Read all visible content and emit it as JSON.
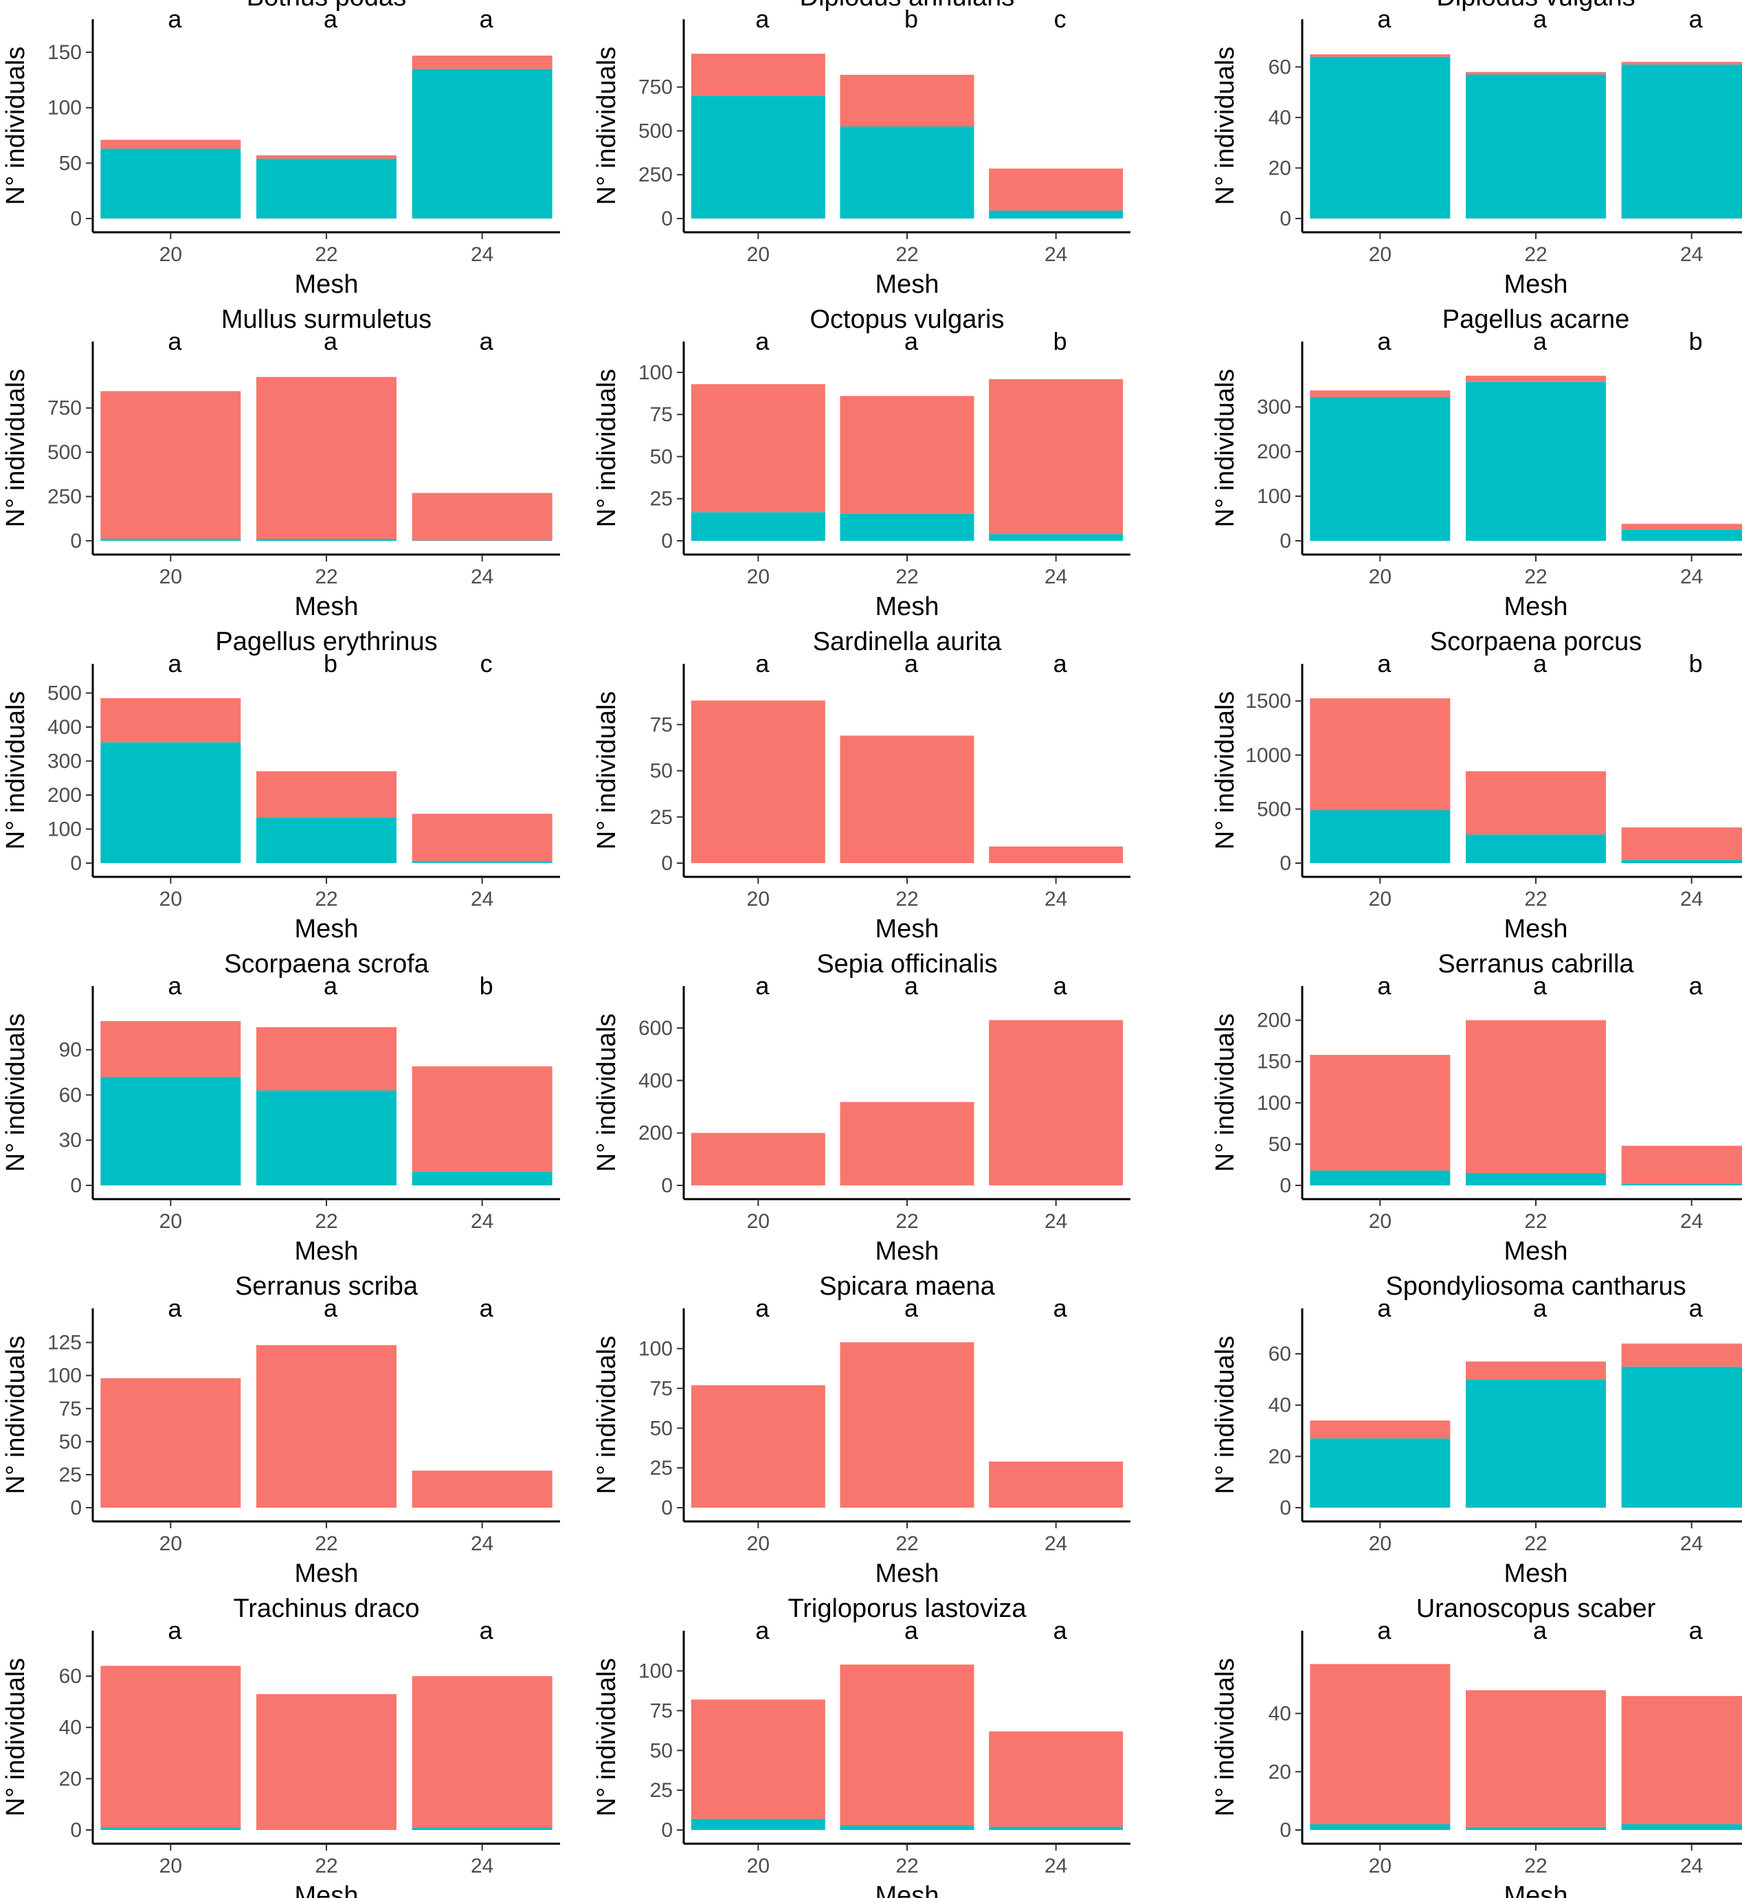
{
  "colors": {
    "teal": "#00BFC4",
    "salmon": "#F8766D"
  },
  "chart_data": [
    {
      "type": "bar",
      "stacked": true,
      "title": "Bothus podas",
      "xlabel": "Mesh",
      "ylabel": "N° individuals",
      "categories": [
        "20",
        "22",
        "24"
      ],
      "series": [
        {
          "name": "teal",
          "values": [
            63,
            54,
            135
          ]
        },
        {
          "name": "salmon",
          "values": [
            8,
            3,
            12
          ]
        }
      ],
      "ylim": [
        0,
        155
      ],
      "yticks": [
        0,
        50,
        100,
        150
      ],
      "letters": [
        "a",
        "a",
        "a"
      ]
    },
    {
      "type": "bar",
      "stacked": true,
      "title": "Diplodus annularis",
      "xlabel": "Mesh",
      "ylabel": "N° individuals",
      "categories": [
        "20",
        "22",
        "24"
      ],
      "series": [
        {
          "name": "teal",
          "values": [
            700,
            525,
            45
          ]
        },
        {
          "name": "salmon",
          "values": [
            240,
            295,
            240
          ]
        }
      ],
      "ylim": [
        0,
        980
      ],
      "yticks": [
        0,
        250,
        500,
        750
      ],
      "letters": [
        "a",
        "b",
        "c"
      ]
    },
    {
      "type": "bar",
      "stacked": true,
      "title": "Diplodus vulgaris",
      "xlabel": "Mesh",
      "ylabel": "N° individuals",
      "categories": [
        "20",
        "22",
        "24"
      ],
      "series": [
        {
          "name": "teal",
          "values": [
            64,
            57,
            61
          ]
        },
        {
          "name": "salmon",
          "values": [
            1,
            1,
            1
          ]
        }
      ],
      "ylim": [
        0,
        68
      ],
      "yticks": [
        0,
        20,
        40,
        60
      ],
      "letters": [
        "a",
        "a",
        "a"
      ]
    },
    {
      "type": "bar",
      "stacked": true,
      "title": "Mullus surmuletus",
      "xlabel": "Mesh",
      "ylabel": "N° individuals",
      "categories": [
        "20",
        "22",
        "24"
      ],
      "series": [
        {
          "name": "teal",
          "values": [
            12,
            10,
            2
          ]
        },
        {
          "name": "salmon",
          "values": [
            833,
            915,
            268
          ]
        }
      ],
      "ylim": [
        0,
        970
      ],
      "yticks": [
        0,
        250,
        500,
        750
      ],
      "letters": [
        "a",
        "a",
        "a"
      ]
    },
    {
      "type": "bar",
      "stacked": true,
      "title": "Octopus vulgaris",
      "xlabel": "Mesh",
      "ylabel": "N° individuals",
      "categories": [
        "20",
        "22",
        "24"
      ],
      "series": [
        {
          "name": "teal",
          "values": [
            17,
            16,
            4
          ]
        },
        {
          "name": "salmon",
          "values": [
            76,
            70,
            92
          ]
        }
      ],
      "ylim": [
        0,
        102
      ],
      "yticks": [
        0,
        25,
        50,
        75,
        100
      ],
      "letters": [
        "a",
        "a",
        "b"
      ]
    },
    {
      "type": "bar",
      "stacked": true,
      "title": "Pagellus acarne",
      "xlabel": "Mesh",
      "ylabel": "N° individuals",
      "categories": [
        "20",
        "22",
        "24"
      ],
      "series": [
        {
          "name": "teal",
          "values": [
            322,
            356,
            25
          ]
        },
        {
          "name": "salmon",
          "values": [
            15,
            14,
            13
          ]
        }
      ],
      "ylim": [
        0,
        385
      ],
      "yticks": [
        0,
        100,
        200,
        300
      ],
      "letters": [
        "a",
        "a",
        "b"
      ]
    },
    {
      "type": "bar",
      "stacked": true,
      "title": "Pagellus erythrinus",
      "xlabel": "Mesh",
      "ylabel": "N° individuals",
      "categories": [
        "20",
        "22",
        "24"
      ],
      "series": [
        {
          "name": "teal",
          "values": [
            355,
            135,
            5
          ]
        },
        {
          "name": "salmon",
          "values": [
            130,
            135,
            140
          ]
        }
      ],
      "ylim": [
        0,
        505
      ],
      "yticks": [
        0,
        100,
        200,
        300,
        400,
        500
      ],
      "letters": [
        "a",
        "b",
        "c"
      ]
    },
    {
      "type": "bar",
      "stacked": true,
      "title": "Sardinella aurita",
      "xlabel": "Mesh",
      "ylabel": "N° individuals",
      "categories": [
        "20",
        "22",
        "24"
      ],
      "series": [
        {
          "name": "teal",
          "values": [
            0,
            0,
            0
          ]
        },
        {
          "name": "salmon",
          "values": [
            88,
            69,
            9
          ]
        }
      ],
      "ylim": [
        0,
        93
      ],
      "yticks": [
        0,
        25,
        50,
        75
      ],
      "letters": [
        "a",
        "a",
        "a"
      ]
    },
    {
      "type": "bar",
      "stacked": true,
      "title": "Scorpaena porcus",
      "xlabel": "Mesh",
      "ylabel": "N° individuals",
      "categories": [
        "20",
        "22",
        "24"
      ],
      "series": [
        {
          "name": "teal",
          "values": [
            490,
            265,
            30
          ]
        },
        {
          "name": "salmon",
          "values": [
            1035,
            585,
            300
          ]
        }
      ],
      "ylim": [
        0,
        1590
      ],
      "yticks": [
        0,
        500,
        1000,
        1500
      ],
      "letters": [
        "a",
        "a",
        "b"
      ]
    },
    {
      "type": "bar",
      "stacked": true,
      "title": "Scorpaena scrofa",
      "xlabel": "Mesh",
      "ylabel": "N° individuals",
      "categories": [
        "20",
        "22",
        "24"
      ],
      "series": [
        {
          "name": "teal",
          "values": [
            72,
            63,
            9
          ]
        },
        {
          "name": "salmon",
          "values": [
            37,
            42,
            70
          ]
        }
      ],
      "ylim": [
        0,
        114
      ],
      "yticks": [
        0,
        30,
        60,
        90
      ],
      "letters": [
        "a",
        "a",
        "b"
      ]
    },
    {
      "type": "bar",
      "stacked": true,
      "title": "Sepia officinalis",
      "xlabel": "Mesh",
      "ylabel": "N° individuals",
      "categories": [
        "20",
        "22",
        "24"
      ],
      "series": [
        {
          "name": "teal",
          "values": [
            0,
            0,
            0
          ]
        },
        {
          "name": "salmon",
          "values": [
            200,
            318,
            630
          ]
        }
      ],
      "ylim": [
        0,
        655
      ],
      "yticks": [
        0,
        200,
        400,
        600
      ],
      "letters": [
        "a",
        "a",
        "a"
      ]
    },
    {
      "type": "bar",
      "stacked": true,
      "title": "Serranus cabrilla",
      "xlabel": "Mesh",
      "ylabel": "N° individuals",
      "categories": [
        "20",
        "22",
        "24"
      ],
      "series": [
        {
          "name": "teal",
          "values": [
            18,
            15,
            2
          ]
        },
        {
          "name": "salmon",
          "values": [
            140,
            185,
            46
          ]
        }
      ],
      "ylim": [
        0,
        208
      ],
      "yticks": [
        0,
        50,
        100,
        150,
        200
      ],
      "letters": [
        "a",
        "a",
        "a"
      ]
    },
    {
      "type": "bar",
      "stacked": true,
      "title": "Serranus scriba",
      "xlabel": "Mesh",
      "ylabel": "N° individuals",
      "categories": [
        "20",
        "22",
        "24"
      ],
      "series": [
        {
          "name": "teal",
          "values": [
            0,
            0,
            0
          ]
        },
        {
          "name": "salmon",
          "values": [
            98,
            123,
            28
          ]
        }
      ],
      "ylim": [
        0,
        130
      ],
      "yticks": [
        0,
        25,
        50,
        75,
        100,
        125
      ],
      "letters": [
        "a",
        "a",
        "a"
      ]
    },
    {
      "type": "bar",
      "stacked": true,
      "title": "Spicara maena",
      "xlabel": "Mesh",
      "ylabel": "N° individuals",
      "categories": [
        "20",
        "22",
        "24"
      ],
      "series": [
        {
          "name": "teal",
          "values": [
            0,
            0,
            0
          ]
        },
        {
          "name": "salmon",
          "values": [
            77,
            104,
            29
          ]
        }
      ],
      "ylim": [
        0,
        108
      ],
      "yticks": [
        0,
        25,
        50,
        75,
        100
      ],
      "letters": [
        "a",
        "a",
        "a"
      ]
    },
    {
      "type": "bar",
      "stacked": true,
      "title": "Spondyliosoma cantharus",
      "xlabel": "Mesh",
      "ylabel": "N° individuals",
      "categories": [
        "20",
        "22",
        "24"
      ],
      "series": [
        {
          "name": "teal",
          "values": [
            27,
            50,
            55
          ]
        },
        {
          "name": "salmon",
          "values": [
            7,
            7,
            9
          ]
        }
      ],
      "ylim": [
        0,
        67
      ],
      "yticks": [
        0,
        20,
        40,
        60
      ],
      "letters": [
        "a",
        "a",
        "a"
      ]
    },
    {
      "type": "bar",
      "stacked": true,
      "title": "Trachinus draco",
      "xlabel": "Mesh",
      "ylabel": "N° individuals",
      "categories": [
        "20",
        "22",
        "24"
      ],
      "series": [
        {
          "name": "teal",
          "values": [
            1,
            0,
            1
          ]
        },
        {
          "name": "salmon",
          "values": [
            63,
            53,
            59
          ]
        }
      ],
      "ylim": [
        0,
        67
      ],
      "yticks": [
        0,
        20,
        40,
        60
      ],
      "letters": [
        "a",
        "",
        "a"
      ]
    },
    {
      "type": "bar",
      "stacked": true,
      "title": "Trigloporus lastoviza",
      "xlabel": "Mesh",
      "ylabel": "N° individuals",
      "categories": [
        "20",
        "22",
        "24"
      ],
      "series": [
        {
          "name": "teal",
          "values": [
            7,
            3,
            2
          ]
        },
        {
          "name": "salmon",
          "values": [
            75,
            101,
            60
          ]
        }
      ],
      "ylim": [
        0,
        108
      ],
      "yticks": [
        0,
        25,
        50,
        75,
        100
      ],
      "letters": [
        "a",
        "a",
        "a"
      ]
    },
    {
      "type": "bar",
      "stacked": true,
      "title": "Uranoscopus scaber",
      "xlabel": "Mesh",
      "ylabel": "N° individuals",
      "categories": [
        "20",
        "22",
        "24"
      ],
      "series": [
        {
          "name": "teal",
          "values": [
            2,
            1,
            2
          ]
        },
        {
          "name": "salmon",
          "values": [
            55,
            47,
            44
          ]
        }
      ],
      "ylim": [
        0,
        59
      ],
      "yticks": [
        0,
        20,
        40
      ],
      "letters": [
        "a",
        "a",
        "a"
      ]
    }
  ]
}
